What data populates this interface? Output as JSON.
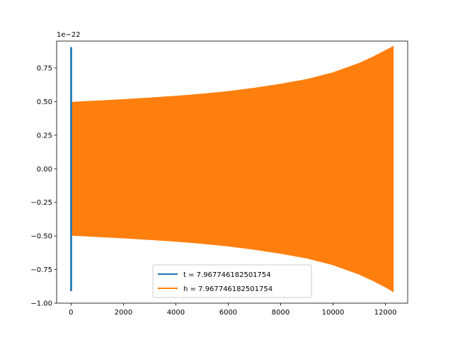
{
  "chart_data": {
    "type": "line",
    "title": "",
    "xlabel": "",
    "ylabel": "",
    "offset_text": "1e−22",
    "xlim": [
      -550,
      12850
    ],
    "ylim": [
      -1.0,
      0.95
    ],
    "xticks": [
      0,
      2000,
      4000,
      6000,
      8000,
      10000,
      12000
    ],
    "xtick_labels": [
      "0",
      "2000",
      "4000",
      "6000",
      "8000",
      "10000",
      "12000"
    ],
    "yticks": [
      -1.0,
      -0.75,
      -0.5,
      -0.25,
      0.0,
      0.25,
      0.5,
      0.75
    ],
    "ytick_labels": [
      "−1.00",
      "−0.75",
      "−0.50",
      "−0.25",
      "0.00",
      "0.25",
      "0.50",
      "0.75"
    ],
    "grid": false,
    "legend_position": "lower-center",
    "series": [
      {
        "name": "t = 7.967746182501754",
        "color": "#1f77b4",
        "x_range": [
          0,
          8
        ],
        "amplitude_min": -0.91,
        "amplitude_max": 0.905
      },
      {
        "name": "h = 7.967746182501754",
        "color": "#ff7f0e",
        "x": [
          0,
          1000,
          2000,
          3000,
          4000,
          5000,
          6000,
          7000,
          8000,
          9000,
          10000,
          11000,
          11500,
          12000,
          12300
        ],
        "upper": [
          0.495,
          0.505,
          0.515,
          0.527,
          0.54,
          0.556,
          0.575,
          0.6,
          0.63,
          0.665,
          0.715,
          0.785,
          0.83,
          0.88,
          0.91
        ],
        "lower": [
          -0.495,
          -0.505,
          -0.515,
          -0.527,
          -0.54,
          -0.556,
          -0.575,
          -0.6,
          -0.63,
          -0.665,
          -0.715,
          -0.785,
          -0.83,
          -0.88,
          -0.915
        ]
      }
    ]
  }
}
